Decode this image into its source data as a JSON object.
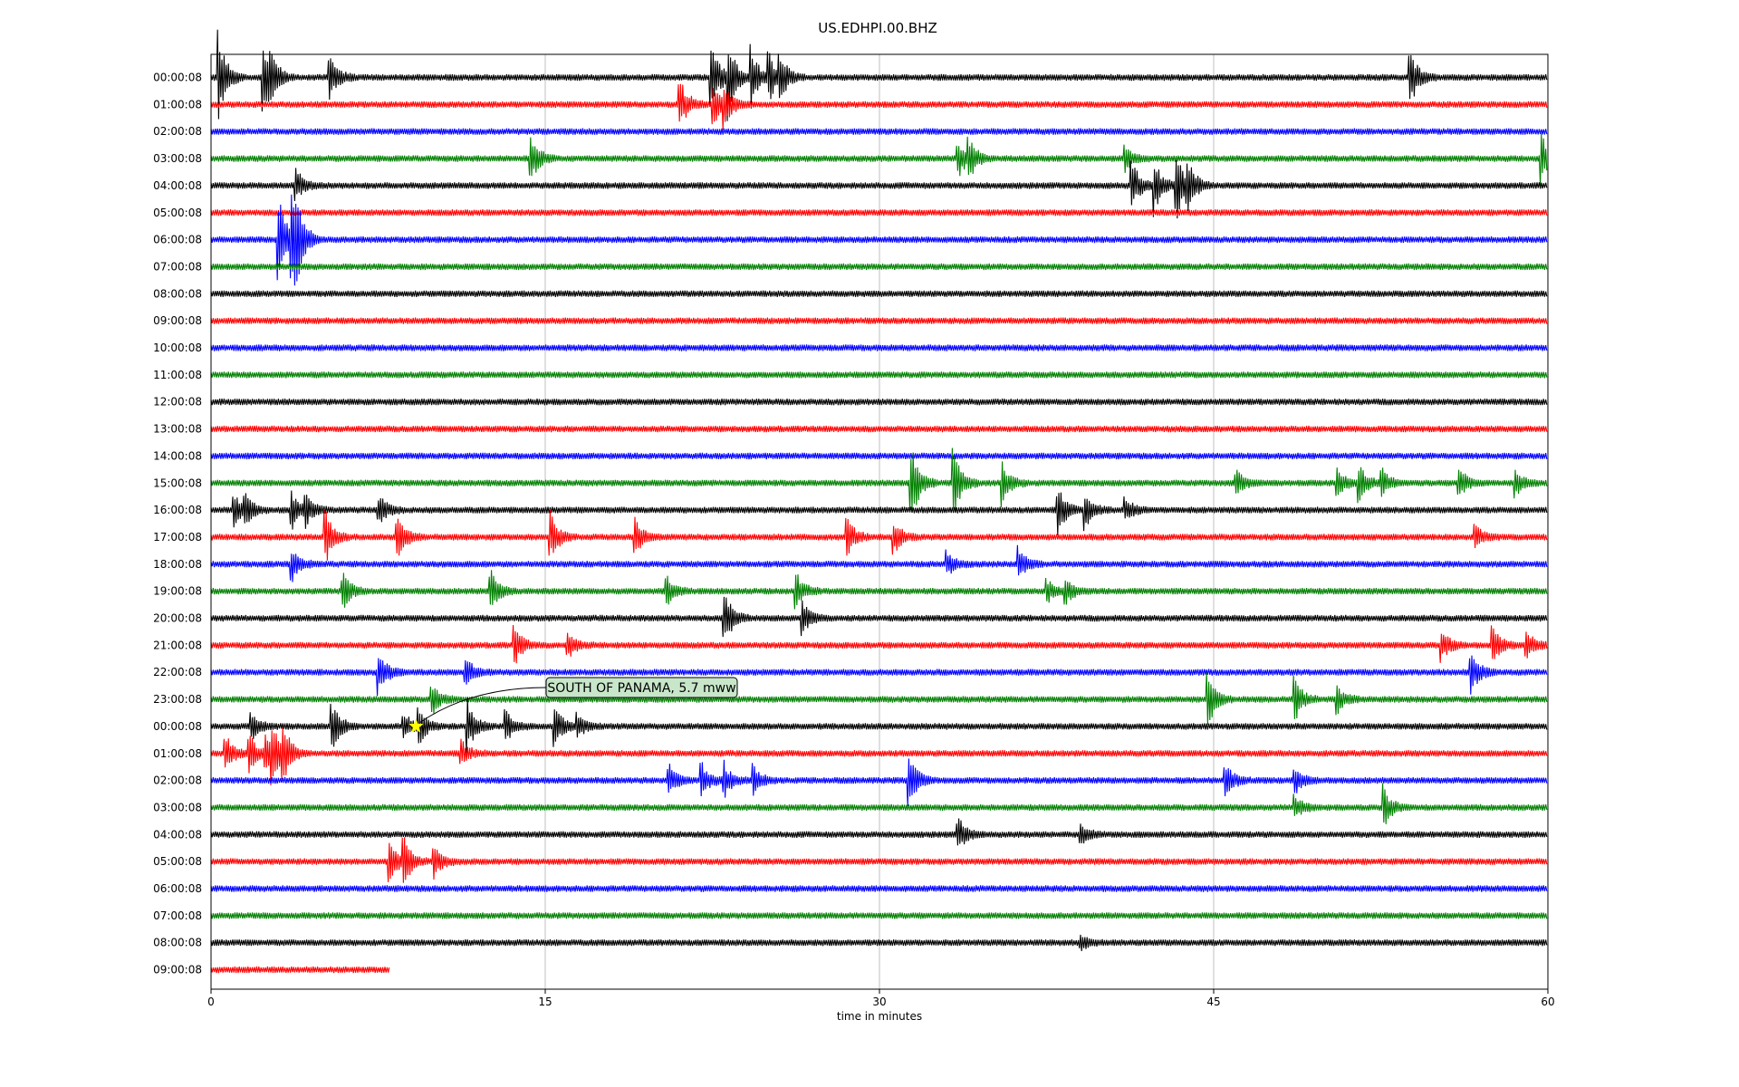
{
  "chart_data": {
    "type": "line",
    "title": "US.EDHPI.00.BHZ",
    "xlabel": "time in minutes",
    "ylabel": "",
    "xlim": [
      0,
      60
    ],
    "x_ticks": [
      0,
      15,
      30,
      45,
      60
    ],
    "grid": "vertical",
    "series_colors": [
      "#000000",
      "#ff0000",
      "#0000ff",
      "#008000"
    ],
    "rows": [
      {
        "label": "00:00:08",
        "end_minute": 60,
        "events": [
          [
            0.3,
            1.8
          ],
          [
            2.3,
            1.4
          ],
          [
            2.6,
            0.8
          ],
          [
            5.3,
            0.9
          ],
          [
            22.4,
            1.6
          ],
          [
            23.2,
            1.4
          ],
          [
            24.2,
            1.2
          ],
          [
            25.0,
            1.0
          ],
          [
            25.5,
            0.9
          ],
          [
            53.8,
            1.1
          ]
        ]
      },
      {
        "label": "01:00:08",
        "end_minute": 60,
        "events": [
          [
            21.0,
            1.1
          ],
          [
            22.5,
            0.9
          ],
          [
            23.0,
            0.8
          ]
        ]
      },
      {
        "label": "02:00:08",
        "end_minute": 60,
        "events": []
      },
      {
        "label": "03:00:08",
        "end_minute": 60,
        "events": [
          [
            14.3,
            1.1
          ],
          [
            33.5,
            0.8
          ],
          [
            34.0,
            0.7
          ],
          [
            41.0,
            0.5
          ],
          [
            59.7,
            0.9
          ]
        ]
      },
      {
        "label": "04:00:08",
        "end_minute": 60,
        "events": [
          [
            3.8,
            0.6
          ],
          [
            41.3,
            1.0
          ],
          [
            42.3,
            1.1
          ],
          [
            43.3,
            1.3
          ],
          [
            43.8,
            0.9
          ]
        ]
      },
      {
        "label": "05:00:08",
        "end_minute": 60,
        "events": []
      },
      {
        "label": "06:00:08",
        "end_minute": 60,
        "events": [
          [
            3.0,
            1.8
          ],
          [
            3.6,
            1.5
          ],
          [
            3.8,
            1.2
          ]
        ]
      },
      {
        "label": "07:00:08",
        "end_minute": 60,
        "events": []
      },
      {
        "label": "08:00:08",
        "end_minute": 60,
        "events": []
      },
      {
        "label": "09:00:08",
        "end_minute": 60,
        "events": []
      },
      {
        "label": "10:00:08",
        "end_minute": 60,
        "events": []
      },
      {
        "label": "11:00:08",
        "end_minute": 60,
        "events": []
      },
      {
        "label": "12:00:08",
        "end_minute": 60,
        "events": []
      },
      {
        "label": "13:00:08",
        "end_minute": 60,
        "events": []
      },
      {
        "label": "14:00:08",
        "end_minute": 60,
        "events": []
      },
      {
        "label": "15:00:08",
        "end_minute": 60,
        "events": [
          [
            31.4,
            1.6
          ],
          [
            33.3,
            1.3
          ],
          [
            35.5,
            0.8
          ],
          [
            46.0,
            0.5
          ],
          [
            50.5,
            0.6
          ],
          [
            51.5,
            0.7
          ],
          [
            52.5,
            0.6
          ],
          [
            56.0,
            0.6
          ],
          [
            58.5,
            0.6
          ]
        ]
      },
      {
        "label": "16:00:08",
        "end_minute": 60,
        "events": [
          [
            1.0,
            0.6
          ],
          [
            1.5,
            0.6
          ],
          [
            3.6,
            0.8
          ],
          [
            4.2,
            0.6
          ],
          [
            7.5,
            0.6
          ],
          [
            38.0,
            0.9
          ],
          [
            39.2,
            0.7
          ],
          [
            41.0,
            0.5
          ]
        ]
      },
      {
        "label": "17:00:08",
        "end_minute": 60,
        "events": [
          [
            5.1,
            1.1
          ],
          [
            8.3,
            1.0
          ],
          [
            15.2,
            1.0
          ],
          [
            19.0,
            0.7
          ],
          [
            28.5,
            0.8
          ],
          [
            30.6,
            0.7
          ],
          [
            56.7,
            0.5
          ]
        ]
      },
      {
        "label": "18:00:08",
        "end_minute": 60,
        "events": [
          [
            3.6,
            0.7
          ],
          [
            33.0,
            0.5
          ],
          [
            36.2,
            0.7
          ]
        ]
      },
      {
        "label": "19:00:08",
        "end_minute": 60,
        "events": [
          [
            5.9,
            0.7
          ],
          [
            12.5,
            1.0
          ],
          [
            20.4,
            0.6
          ],
          [
            26.2,
            0.8
          ],
          [
            37.5,
            0.5
          ],
          [
            38.3,
            0.5
          ]
        ]
      },
      {
        "label": "20:00:08",
        "end_minute": 60,
        "events": [
          [
            23.0,
            1.2
          ],
          [
            26.5,
            0.7
          ]
        ]
      },
      {
        "label": "21:00:08",
        "end_minute": 60,
        "events": [
          [
            13.6,
            0.8
          ],
          [
            16.0,
            0.5
          ],
          [
            55.2,
            0.6
          ],
          [
            57.5,
            0.7
          ],
          [
            59.0,
            0.6
          ]
        ]
      },
      {
        "label": "22:00:08",
        "end_minute": 60,
        "events": [
          [
            7.5,
            0.9
          ],
          [
            11.4,
            0.6
          ],
          [
            56.5,
            1.0
          ]
        ]
      },
      {
        "label": "23:00:08",
        "end_minute": 60,
        "events": [
          [
            9.9,
            0.6
          ],
          [
            44.7,
            1.1
          ],
          [
            48.6,
            0.9
          ],
          [
            50.5,
            0.6
          ]
        ]
      },
      {
        "label": "00:00:08",
        "end_minute": 60,
        "events": [
          [
            1.8,
            0.5
          ],
          [
            5.4,
            1.1
          ],
          [
            8.6,
            0.6
          ],
          [
            9.3,
            0.7
          ],
          [
            11.5,
            1.0
          ],
          [
            13.2,
            0.6
          ],
          [
            15.4,
            0.8
          ],
          [
            16.4,
            0.5
          ]
        ]
      },
      {
        "label": "01:00:08",
        "end_minute": 60,
        "events": [
          [
            0.6,
            0.8
          ],
          [
            1.7,
            0.8
          ],
          [
            2.4,
            0.7
          ],
          [
            2.7,
            1.0
          ],
          [
            3.2,
            1.0
          ],
          [
            11.2,
            0.5
          ]
        ]
      },
      {
        "label": "02:00:08",
        "end_minute": 60,
        "events": [
          [
            20.5,
            0.7
          ],
          [
            22.0,
            0.7
          ],
          [
            23.0,
            0.7
          ],
          [
            24.3,
            0.6
          ],
          [
            31.3,
            1.1
          ],
          [
            45.5,
            0.8
          ],
          [
            48.6,
            0.6
          ]
        ]
      },
      {
        "label": "03:00:08",
        "end_minute": 60,
        "events": [
          [
            48.6,
            0.5
          ],
          [
            52.6,
            0.8
          ]
        ]
      },
      {
        "label": "04:00:08",
        "end_minute": 60,
        "events": [
          [
            33.5,
            0.7
          ],
          [
            39.0,
            0.4
          ]
        ]
      },
      {
        "label": "05:00:08",
        "end_minute": 60,
        "events": [
          [
            8.0,
            0.7
          ],
          [
            8.6,
            1.0
          ],
          [
            10.0,
            0.6
          ]
        ]
      },
      {
        "label": "06:00:08",
        "end_minute": 60,
        "events": []
      },
      {
        "label": "07:00:08",
        "end_minute": 60,
        "events": []
      },
      {
        "label": "08:00:08",
        "end_minute": 60,
        "events": [
          [
            39.0,
            0.3
          ]
        ]
      },
      {
        "label": "09:00:08",
        "end_minute": 8,
        "events": []
      }
    ],
    "annotation": {
      "text": "SOUTH OF PANAMA, 5.7 mww",
      "marker_row": 24,
      "marker_minute": 9.2,
      "marker_color": "#ffff00",
      "box_color": "#c8e6c9"
    }
  }
}
